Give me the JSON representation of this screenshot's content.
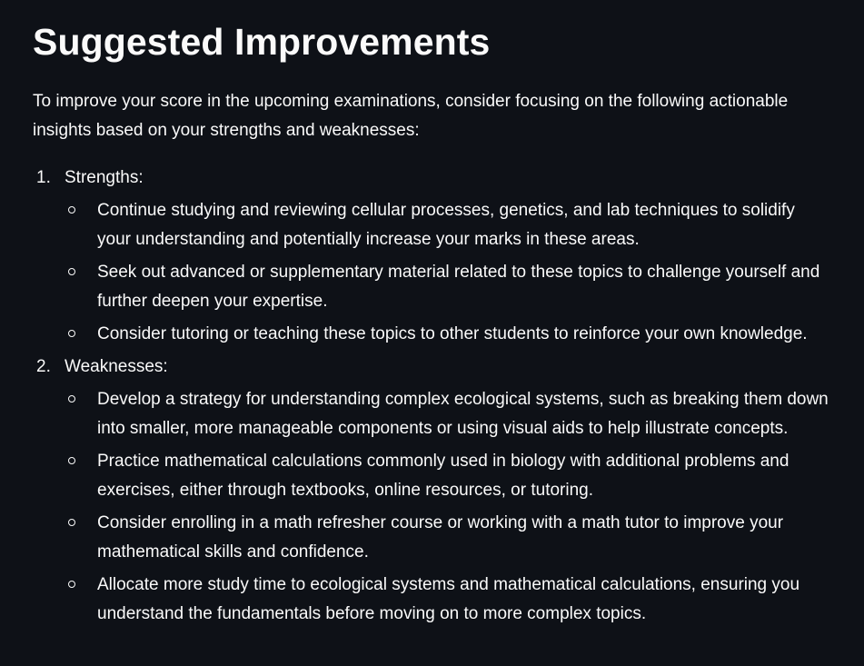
{
  "page": {
    "title": "Suggested Improvements",
    "intro": "To improve your score in the upcoming examinations, consider focusing on the following actionable insights based on your strengths and weaknesses:"
  },
  "sections": [
    {
      "number": "1.",
      "title": "Strengths:",
      "items": [
        "Continue studying and reviewing cellular processes, genetics, and lab techniques to solidify your understanding and potentially increase your marks in these areas.",
        "Seek out advanced or supplementary material related to these topics to challenge yourself and further deepen your expertise.",
        "Consider tutoring or teaching these topics to other students to reinforce your own knowledge."
      ]
    },
    {
      "number": "2.",
      "title": "Weaknesses:",
      "items": [
        "Develop a strategy for understanding complex ecological systems, such as breaking them down into smaller, more manageable components or using visual aids to help illustrate concepts.",
        "Practice mathematical calculations commonly used in biology with additional problems and exercises, either through textbooks, online resources, or tutoring.",
        "Consider enrolling in a math refresher course or working with a math tutor to improve your mathematical skills and confidence.",
        "Allocate more study time to ecological systems and mathematical calculations, ensuring you understand the fundamentals before moving on to more complex topics."
      ]
    }
  ],
  "colors": {
    "background": "#0e1117",
    "text": "#fafafa"
  }
}
